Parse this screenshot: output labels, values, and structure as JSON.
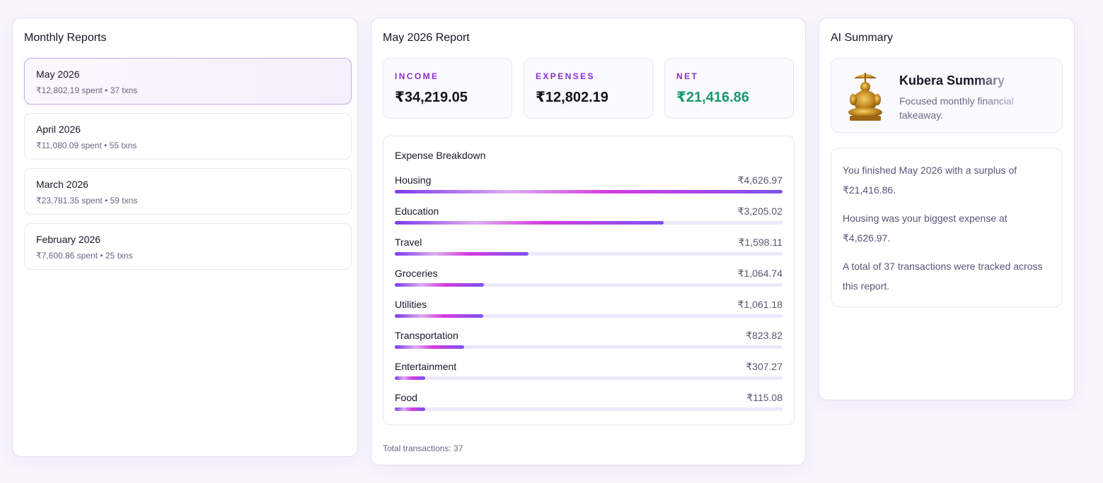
{
  "monthly_reports": {
    "title": "Monthly Reports",
    "items": [
      {
        "name": "May 2026",
        "meta": "₹12,802.19 spent • 37 txns",
        "active": true
      },
      {
        "name": "April 2026",
        "meta": "₹11,080.09 spent • 55 txns"
      },
      {
        "name": "March 2026",
        "meta": "₹23,781.35 spent • 59 txns"
      },
      {
        "name": "February 2026",
        "meta": "₹7,600.86 spent • 25 txns"
      }
    ]
  },
  "report": {
    "title": "May 2026 Report",
    "stats": {
      "income": {
        "label": "INCOME",
        "value": "₹34,219.05"
      },
      "expenses": {
        "label": "EXPENSES",
        "value": "₹12,802.19"
      },
      "net": {
        "label": "NET",
        "value": "₹21,416.86",
        "color": "#169a6a"
      }
    },
    "breakdown": {
      "title": "Expense Breakdown",
      "items": [
        {
          "label": "Housing",
          "amount": "₹4,626.97",
          "fraction": 1.0
        },
        {
          "label": "Education",
          "amount": "₹3,205.02",
          "fraction": 0.693
        },
        {
          "label": "Travel",
          "amount": "₹1,598.11",
          "fraction": 0.345
        },
        {
          "label": "Groceries",
          "amount": "₹1,064.74",
          "fraction": 0.23
        },
        {
          "label": "Utilities",
          "amount": "₹1,061.18",
          "fraction": 0.229
        },
        {
          "label": "Transportation",
          "amount": "₹823.82",
          "fraction": 0.178
        },
        {
          "label": "Entertainment",
          "amount": "₹307.27",
          "fraction": 0.078
        },
        {
          "label": "Food",
          "amount": "₹115.08",
          "fraction": 0.078
        }
      ]
    },
    "total_transactions": "Total transactions: 37"
  },
  "ai_summary": {
    "title": "AI Summary",
    "card_title": "Kubera Summary",
    "card_subtitle": "Focused monthly financial takeaway.",
    "icon": "kubera-statue-icon",
    "paragraphs": [
      "You finished May 2026 with a surplus of ₹21,416.86.",
      "Housing was your biggest expense at ₹4,626.97.",
      "A total of 37 transactions were tracked across this report."
    ]
  },
  "colors": {
    "accent": "#8b2fd0",
    "positive": "#169a6a",
    "bar_gradient": [
      "#7c3aed",
      "#d63bdf",
      "#7b52f0"
    ]
  }
}
